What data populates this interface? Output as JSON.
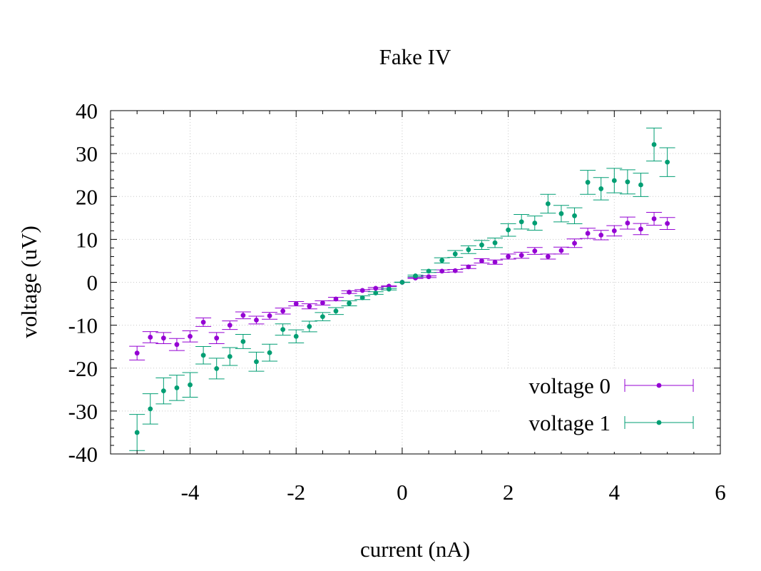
{
  "chart_data": {
    "type": "scatter",
    "title": "Fake IV",
    "xlabel": "current (nA)",
    "ylabel": "voltage (uV)",
    "xlim": [
      -5.5,
      6
    ],
    "ylim": [
      -40,
      40
    ],
    "x_ticks": [
      -4,
      -2,
      0,
      2,
      4,
      6
    ],
    "y_ticks": [
      -40,
      -30,
      -20,
      -10,
      0,
      10,
      20,
      30,
      40
    ],
    "grid": true,
    "legend_position": "bottom-right",
    "error_bars": "y",
    "series": [
      {
        "name": "voltage 0",
        "color": "#9400d3",
        "x": [
          -5.0,
          -4.75,
          -4.5,
          -4.25,
          -4.0,
          -3.75,
          -3.5,
          -3.25,
          -3.0,
          -2.75,
          -2.5,
          -2.25,
          -2.0,
          -1.75,
          -1.5,
          -1.25,
          -1.0,
          -0.75,
          -0.5,
          -0.25,
          0.0,
          0.25,
          0.5,
          0.75,
          1.0,
          1.25,
          1.5,
          1.75,
          2.0,
          2.25,
          2.5,
          2.75,
          3.0,
          3.25,
          3.5,
          3.75,
          4.0,
          4.25,
          4.5,
          4.75,
          5.0
        ],
        "y": [
          -16.5,
          -12.8,
          -13.0,
          -14.5,
          -12.6,
          -9.3,
          -13.0,
          -10.0,
          -7.7,
          -8.8,
          -7.8,
          -6.7,
          -5.0,
          -5.6,
          -4.8,
          -3.9,
          -2.3,
          -1.9,
          -1.4,
          -0.9,
          0.0,
          1.0,
          1.3,
          2.6,
          2.7,
          3.6,
          5.0,
          4.7,
          6.0,
          6.3,
          7.3,
          6.0,
          7.4,
          9.1,
          11.4,
          11.0,
          12.0,
          13.8,
          12.4,
          14.8,
          13.7
        ],
        "err": [
          1.6,
          1.3,
          1.3,
          1.4,
          1.3,
          1.0,
          1.3,
          1.0,
          0.8,
          0.9,
          0.8,
          0.7,
          0.5,
          0.6,
          0.5,
          0.4,
          0.3,
          0.2,
          0.2,
          0.1,
          0.0,
          0.1,
          0.2,
          0.3,
          0.3,
          0.4,
          0.5,
          0.5,
          0.6,
          0.7,
          0.8,
          0.6,
          0.8,
          1.0,
          1.2,
          1.1,
          1.2,
          1.4,
          1.3,
          1.5,
          1.4
        ]
      },
      {
        "name": "voltage 1",
        "color": "#009e73",
        "x": [
          -5.0,
          -4.75,
          -4.5,
          -4.25,
          -4.0,
          -3.75,
          -3.5,
          -3.25,
          -3.0,
          -2.75,
          -2.5,
          -2.25,
          -2.0,
          -1.75,
          -1.5,
          -1.25,
          -1.0,
          -0.75,
          -0.5,
          -0.25,
          0.0,
          0.25,
          0.5,
          0.75,
          1.0,
          1.25,
          1.5,
          1.75,
          2.0,
          2.25,
          2.5,
          2.75,
          3.0,
          3.25,
          3.5,
          3.75,
          4.0,
          4.25,
          4.5,
          4.75,
          5.0
        ],
        "y": [
          -35.0,
          -29.5,
          -25.3,
          -24.6,
          -23.9,
          -17.0,
          -20.1,
          -17.3,
          -13.8,
          -18.5,
          -16.4,
          -11.0,
          -12.6,
          -10.3,
          -8.0,
          -6.7,
          -4.9,
          -3.6,
          -2.5,
          -1.6,
          0.0,
          1.5,
          2.6,
          5.1,
          6.6,
          7.6,
          8.7,
          9.2,
          12.2,
          14.1,
          13.8,
          18.3,
          16.0,
          15.5,
          23.3,
          21.8,
          23.7,
          23.4,
          22.7,
          32.1,
          28.0
        ]
      }
    ]
  },
  "legend": {
    "entries": [
      "voltage 0",
      "voltage 1"
    ]
  }
}
